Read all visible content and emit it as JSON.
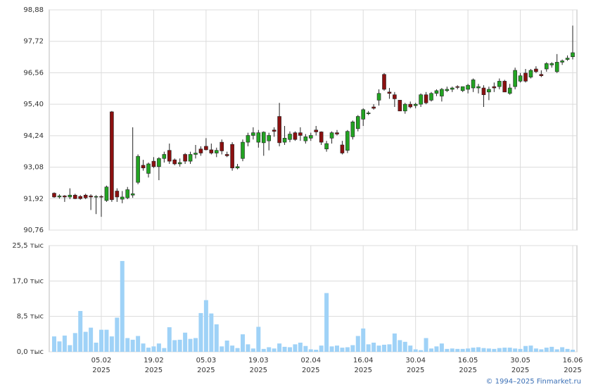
{
  "chart_data": {
    "type": "candlestick",
    "categories": [
      null,
      null,
      null,
      null,
      null,
      null,
      null,
      null,
      null,
      "05.02 2025",
      null,
      null,
      null,
      null,
      null,
      null,
      null,
      null,
      null,
      "19.02 2025",
      null,
      null,
      null,
      null,
      null,
      null,
      null,
      null,
      null,
      "05.03 2025",
      null,
      null,
      null,
      null,
      null,
      null,
      null,
      null,
      null,
      "19.03 2025",
      null,
      null,
      null,
      null,
      null,
      null,
      null,
      null,
      null,
      "02.04 2025",
      null,
      null,
      null,
      null,
      null,
      null,
      null,
      null,
      null,
      "16.04 2025",
      null,
      null,
      null,
      null,
      null,
      null,
      null,
      null,
      null,
      "30.04 2025",
      null,
      null,
      null,
      null,
      null,
      null,
      null,
      null,
      null,
      "16.05 2025",
      null,
      null,
      null,
      null,
      null,
      null,
      null,
      null,
      null,
      "30.05 2025",
      null,
      null,
      null,
      null,
      null,
      null,
      null,
      null,
      null,
      "16.06 2025"
    ],
    "open": [
      92.12,
      91.98,
      92.02,
      91.98,
      92.05,
      92.0,
      92.05,
      92.02,
      91.98,
      92.0,
      91.85,
      95.12,
      92.2,
      91.9,
      91.95,
      92.05,
      92.52,
      93.15,
      92.85,
      93.3,
      93.1,
      93.4,
      93.7,
      93.35,
      93.2,
      93.55,
      93.3,
      93.55,
      93.75,
      93.85,
      93.72,
      93.6,
      94.0,
      93.55,
      93.92,
      93.05,
      93.4,
      94.0,
      94.25,
      94.0,
      93.98,
      94.05,
      94.45,
      94.95,
      94.0,
      94.1,
      94.35,
      94.35,
      94.05,
      94.15,
      94.45,
      94.38,
      93.75,
      94.15,
      94.35,
      93.9,
      93.7,
      94.2,
      94.5,
      94.85,
      95.05,
      95.3,
      95.55,
      96.5,
      95.85,
      95.75,
      95.55,
      95.15,
      95.4,
      95.35,
      95.4,
      95.75,
      95.55,
      95.8,
      95.7,
      95.9,
      95.95,
      96.05,
      95.9,
      95.95,
      96.0,
      96.0,
      96.0,
      95.85,
      96.05,
      96.05,
      96.25,
      95.8,
      96.05,
      96.25,
      96.55,
      96.4,
      96.7,
      96.5,
      96.7,
      96.85,
      96.6,
      96.95,
      97.05,
      97.15
    ],
    "high": [
      92.15,
      92.08,
      92.05,
      92.3,
      92.1,
      92.05,
      92.1,
      92.08,
      92.05,
      92.05,
      92.4,
      95.15,
      92.3,
      92.2,
      92.35,
      94.55,
      93.55,
      93.35,
      93.25,
      93.45,
      93.45,
      93.65,
      93.95,
      93.4,
      93.4,
      93.6,
      93.65,
      93.9,
      93.85,
      94.15,
      93.95,
      93.8,
      94.1,
      93.65,
      94.0,
      93.2,
      94.1,
      94.35,
      94.55,
      94.45,
      94.4,
      94.35,
      94.55,
      95.45,
      94.6,
      94.4,
      94.4,
      94.55,
      94.3,
      94.35,
      94.6,
      94.4,
      94.05,
      94.4,
      94.45,
      94.05,
      94.45,
      94.8,
      95.0,
      95.25,
      95.15,
      95.4,
      95.95,
      96.55,
      96.0,
      95.85,
      95.55,
      95.45,
      95.5,
      95.45,
      95.8,
      95.85,
      95.85,
      95.95,
      96.0,
      96.05,
      96.05,
      96.1,
      96.05,
      96.15,
      96.35,
      96.15,
      96.1,
      96.05,
      96.2,
      96.35,
      96.3,
      96.15,
      96.75,
      96.55,
      96.7,
      96.7,
      96.8,
      96.65,
      96.95,
      96.95,
      97.25,
      97.05,
      97.2,
      98.3
    ],
    "low": [
      91.95,
      91.92,
      91.8,
      91.9,
      91.9,
      91.88,
      91.9,
      91.5,
      91.35,
      91.25,
      91.8,
      91.8,
      91.8,
      91.75,
      91.9,
      91.95,
      92.45,
      92.95,
      92.7,
      93.05,
      92.6,
      93.25,
      93.2,
      93.15,
      93.1,
      93.2,
      93.2,
      93.4,
      93.5,
      93.7,
      93.55,
      93.45,
      93.55,
      93.45,
      92.95,
      93.0,
      93.3,
      93.85,
      94.1,
      93.8,
      93.5,
      93.7,
      94.2,
      93.85,
      93.9,
      94.0,
      94.05,
      94.05,
      93.95,
      94.05,
      94.25,
      93.9,
      93.65,
      93.95,
      94.25,
      93.55,
      93.6,
      94.1,
      94.4,
      94.6,
      95.0,
      95.2,
      95.35,
      95.9,
      95.6,
      95.3,
      95.15,
      95.05,
      95.25,
      95.25,
      95.3,
      95.4,
      95.5,
      95.7,
      95.5,
      95.85,
      95.85,
      95.95,
      95.85,
      95.8,
      95.85,
      95.8,
      95.3,
      95.55,
      95.85,
      95.95,
      95.85,
      95.75,
      95.95,
      96.2,
      96.2,
      96.35,
      96.55,
      96.4,
      96.6,
      96.75,
      96.55,
      96.85,
      97.0,
      97.05
    ],
    "close": [
      91.98,
      92.02,
      91.98,
      92.05,
      91.92,
      91.92,
      91.95,
      91.98,
      92.0,
      91.98,
      92.35,
      91.88,
      91.98,
      91.98,
      92.25,
      92.1,
      93.48,
      93.05,
      93.2,
      93.1,
      93.4,
      93.55,
      93.3,
      93.2,
      93.25,
      93.3,
      93.55,
      93.6,
      93.6,
      93.72,
      93.6,
      93.7,
      93.68,
      93.5,
      93.05,
      93.1,
      94.0,
      94.25,
      94.35,
      94.35,
      94.37,
      94.25,
      94.4,
      93.98,
      94.15,
      94.3,
      94.1,
      94.25,
      94.2,
      94.25,
      94.38,
      94.0,
      93.95,
      94.35,
      94.3,
      93.6,
      94.4,
      94.75,
      94.95,
      95.2,
      95.08,
      95.25,
      95.8,
      95.95,
      95.8,
      95.6,
      95.15,
      95.4,
      95.3,
      95.4,
      95.75,
      95.45,
      95.8,
      95.9,
      95.95,
      95.95,
      96.0,
      96.02,
      96.05,
      96.1,
      96.3,
      96.05,
      95.75,
      95.95,
      96.0,
      96.25,
      95.85,
      96.0,
      96.65,
      96.45,
      96.25,
      96.65,
      96.6,
      96.45,
      96.9,
      96.9,
      96.95,
      97.0,
      97.1,
      97.3
    ],
    "volume": [
      3.7,
      2.5,
      3.9,
      1.6,
      4.5,
      9.8,
      4.8,
      5.8,
      2.2,
      5.3,
      5.3,
      3.7,
      8.2,
      21.8,
      3.3,
      2.9,
      3.8,
      2.0,
      1.0,
      1.3,
      2.0,
      0.9,
      5.9,
      2.8,
      2.9,
      4.6,
      3.1,
      3.3,
      9.3,
      12.4,
      9.2,
      6.6,
      1.3,
      2.7,
      1.5,
      0.9,
      4.2,
      1.8,
      0.8,
      6.0,
      0.7,
      1.1,
      0.8,
      2.0,
      1.2,
      1.1,
      1.8,
      2.2,
      1.4,
      0.6,
      0.5,
      1.5,
      14.1,
      1.3,
      1.5,
      1.0,
      1.1,
      1.6,
      3.8,
      5.6,
      1.8,
      2.2,
      1.5,
      1.7,
      1.8,
      4.4,
      2.8,
      2.4,
      1.5,
      0.6,
      0.4,
      3.3,
      0.8,
      1.3,
      2.0,
      0.7,
      0.8,
      0.7,
      0.7,
      0.8,
      1.0,
      1.1,
      0.9,
      0.8,
      0.7,
      0.9,
      1.0,
      1.0,
      0.8,
      0.7,
      1.4,
      1.5,
      0.8,
      0.6,
      1.0,
      1.2,
      0.6,
      1.1,
      0.7,
      0.5
    ],
    "up_color": "#22a322",
    "down_color": "#8b1010",
    "volume_color": "#9fd2f7",
    "ylim": [
      90.76,
      98.88
    ],
    "yticks": [
      {
        "value": 90.76,
        "label": "90,76"
      },
      {
        "value": 91.92,
        "label": "91,92"
      },
      {
        "value": 93.08,
        "label": "93,08"
      },
      {
        "value": 94.24,
        "label": "94,24"
      },
      {
        "value": 95.4,
        "label": "95,40"
      },
      {
        "value": 96.56,
        "label": "96,56"
      },
      {
        "value": 97.72,
        "label": "97,72"
      },
      {
        "value": 98.88,
        "label": "98,88"
      }
    ],
    "y2lim": [
      0,
      25.5
    ],
    "y2ticks": [
      {
        "value": 0,
        "label": "0,0 тыс"
      },
      {
        "value": 8.5,
        "label": "8,5 тыс"
      },
      {
        "value": 17,
        "label": "17,0 тыс"
      },
      {
        "value": 25.5,
        "label": "25,5 тыс"
      }
    ],
    "grid": true,
    "copyright": "© 1994–2025 Finmarket.ru"
  }
}
